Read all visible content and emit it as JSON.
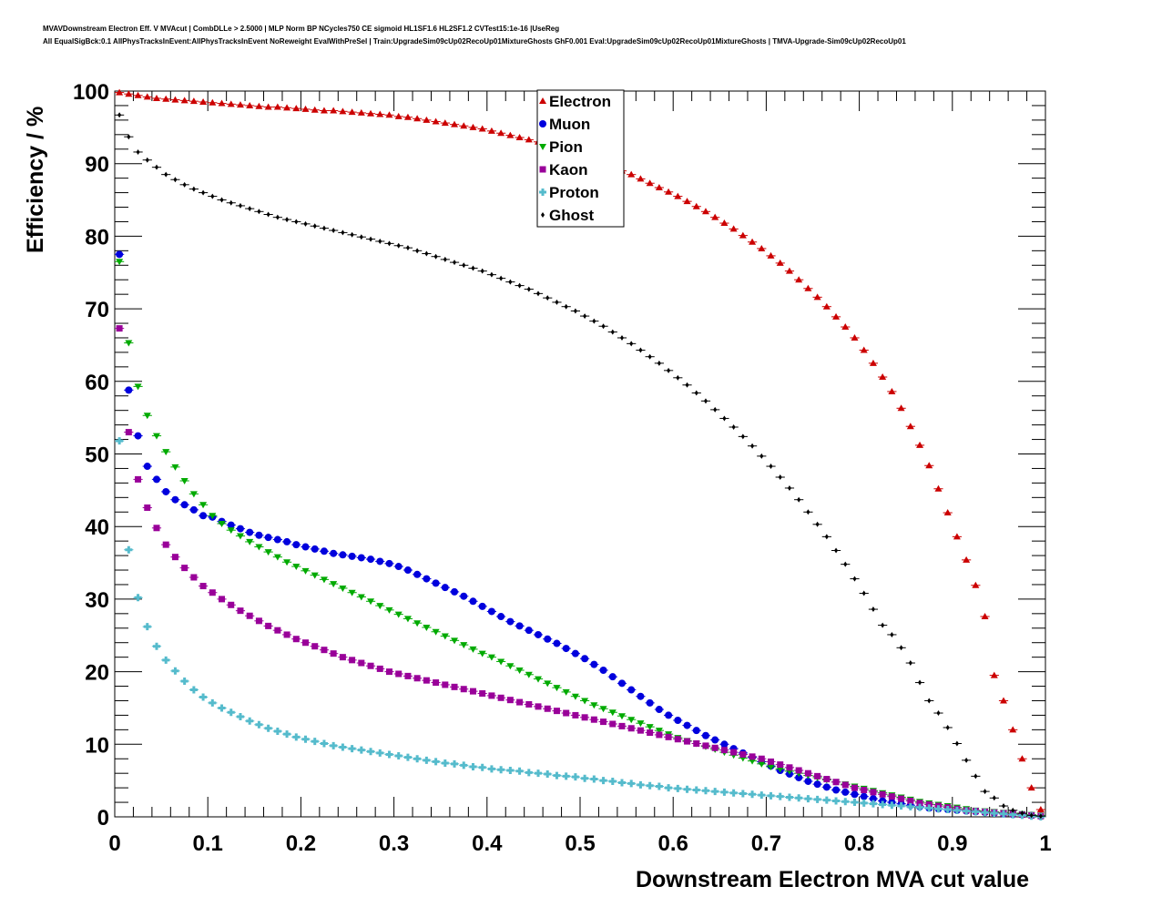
{
  "header": {
    "line1": "MVAVDownstream Electron Eff. V MVAcut | CombDLLe > 2.5000 | MLP Norm BP NCycles750 CE sigmoid HL1SF1.6 HL2SF1.2 CVTest15:1e-16 |UseReg",
    "line2": "All EqualSigBck:0.1 AllPhysTracksInEvent:AllPhysTracksInEvent NoReweight EvalWithPreSel | Train:UpgradeSim09cUp02RecoUp01MixtureGhosts GhF0.001 Eval:UpgradeSim09cUp02RecoUp01MixtureGhosts | TMVA-Upgrade-Sim09cUp02RecoUp01"
  },
  "chart_data": {
    "type": "scatter",
    "xlabel": "Downstream Electron MVA cut value",
    "ylabel": "Efficiency / %",
    "xlim": [
      0,
      1
    ],
    "ylim": [
      0,
      100
    ],
    "x_ticks": [
      "0",
      "0.1",
      "0.2",
      "0.3",
      "0.4",
      "0.5",
      "0.6",
      "0.7",
      "0.8",
      "0.9",
      "1"
    ],
    "y_ticks": [
      "0",
      "10",
      "20",
      "30",
      "40",
      "50",
      "60",
      "70",
      "80",
      "90",
      "100"
    ],
    "legend_position": "top-center",
    "grid": false,
    "x": [
      0.005,
      0.015,
      0.025,
      0.035,
      0.045,
      0.055,
      0.065,
      0.075,
      0.085,
      0.095,
      0.105,
      0.115,
      0.125,
      0.135,
      0.145,
      0.155,
      0.165,
      0.175,
      0.185,
      0.195,
      0.205,
      0.215,
      0.225,
      0.235,
      0.245,
      0.255,
      0.265,
      0.275,
      0.285,
      0.295,
      0.305,
      0.315,
      0.325,
      0.335,
      0.345,
      0.355,
      0.365,
      0.375,
      0.385,
      0.395,
      0.405,
      0.415,
      0.425,
      0.435,
      0.445,
      0.455,
      0.465,
      0.475,
      0.485,
      0.495,
      0.505,
      0.515,
      0.525,
      0.535,
      0.545,
      0.555,
      0.565,
      0.575,
      0.585,
      0.595,
      0.605,
      0.615,
      0.625,
      0.635,
      0.645,
      0.655,
      0.665,
      0.675,
      0.685,
      0.695,
      0.705,
      0.715,
      0.725,
      0.735,
      0.745,
      0.755,
      0.765,
      0.775,
      0.785,
      0.795,
      0.805,
      0.815,
      0.825,
      0.835,
      0.845,
      0.855,
      0.865,
      0.875,
      0.885,
      0.895,
      0.905,
      0.915,
      0.925,
      0.935,
      0.945,
      0.955,
      0.965,
      0.975,
      0.985,
      0.995
    ],
    "series": [
      {
        "name": "Electron",
        "color": "#cc0000",
        "marker": "triangle-up",
        "values": [
          99.8,
          99.6,
          99.4,
          99.2,
          99.0,
          98.9,
          98.8,
          98.7,
          98.6,
          98.5,
          98.4,
          98.3,
          98.2,
          98.1,
          98.0,
          97.9,
          97.8,
          97.8,
          97.7,
          97.6,
          97.5,
          97.4,
          97.3,
          97.3,
          97.2,
          97.1,
          97.0,
          96.9,
          96.8,
          96.7,
          96.5,
          96.4,
          96.2,
          96.0,
          95.8,
          95.6,
          95.4,
          95.2,
          95.0,
          94.8,
          94.5,
          94.2,
          93.9,
          93.6,
          93.3,
          93.0,
          92.6,
          92.2,
          91.8,
          91.4,
          91.0,
          90.5,
          90.0,
          89.5,
          89.0,
          88.5,
          87.9,
          87.3,
          86.7,
          86.1,
          85.5,
          84.8,
          84.1,
          83.4,
          82.6,
          81.8,
          81.0,
          80.1,
          79.2,
          78.3,
          77.3,
          76.3,
          75.2,
          74.0,
          72.8,
          71.6,
          70.3,
          68.9,
          67.5,
          66.0,
          64.3,
          62.5,
          60.6,
          58.6,
          56.3,
          53.8,
          51.2,
          48.4,
          45.2,
          41.9,
          38.6,
          35.4,
          31.9,
          27.6,
          19.5,
          16.0,
          12.0,
          8.0,
          4.0,
          1.0
        ]
      },
      {
        "name": "Muon",
        "color": "#0000dd",
        "marker": "circle",
        "values": [
          77.5,
          58.8,
          52.5,
          48.3,
          46.5,
          44.8,
          43.7,
          43.0,
          42.3,
          41.5,
          41.3,
          40.7,
          40.2,
          39.7,
          39.2,
          38.8,
          38.5,
          38.2,
          37.9,
          37.5,
          37.2,
          36.9,
          36.6,
          36.3,
          36.1,
          35.9,
          35.7,
          35.5,
          35.2,
          34.9,
          34.5,
          34.0,
          33.4,
          32.8,
          32.2,
          31.6,
          31.0,
          30.4,
          29.7,
          29.0,
          28.3,
          27.6,
          26.9,
          26.3,
          25.7,
          25.1,
          24.5,
          23.9,
          23.2,
          22.5,
          21.8,
          21.0,
          20.2,
          19.3,
          18.4,
          17.5,
          16.6,
          15.7,
          14.8,
          14.0,
          13.3,
          12.6,
          11.9,
          11.2,
          10.6,
          10.0,
          9.4,
          8.8,
          8.2,
          7.6,
          7.0,
          6.4,
          5.9,
          5.4,
          4.9,
          4.5,
          4.1,
          3.7,
          3.4,
          3.1,
          2.8,
          2.5,
          2.2,
          2.0,
          1.8,
          1.6,
          1.4,
          1.2,
          1.1,
          1.0,
          0.9,
          0.8,
          0.7,
          0.6,
          0.5,
          0.4,
          0.3,
          0.3,
          0.2,
          0.1
        ]
      },
      {
        "name": "Pion",
        "color": "#00aa00",
        "marker": "triangle-down",
        "values": [
          76.5,
          65.3,
          59.3,
          55.3,
          52.5,
          50.3,
          48.2,
          46.3,
          44.5,
          43.0,
          41.5,
          40.4,
          39.5,
          38.7,
          37.9,
          37.2,
          36.5,
          35.8,
          35.1,
          34.5,
          33.9,
          33.3,
          32.7,
          32.1,
          31.5,
          30.9,
          30.3,
          29.7,
          29.1,
          28.5,
          27.9,
          27.3,
          26.7,
          26.1,
          25.5,
          24.9,
          24.3,
          23.7,
          23.1,
          22.5,
          22.0,
          21.4,
          20.8,
          20.2,
          19.6,
          19.0,
          18.4,
          17.8,
          17.2,
          16.6,
          16.0,
          15.4,
          14.9,
          14.4,
          13.9,
          13.4,
          12.9,
          12.4,
          11.9,
          11.4,
          10.9,
          10.5,
          10.1,
          9.7,
          9.3,
          8.9,
          8.5,
          8.1,
          7.7,
          7.3,
          6.9,
          6.6,
          6.3,
          6.0,
          5.7,
          5.4,
          5.1,
          4.8,
          4.5,
          4.2,
          3.9,
          3.6,
          3.3,
          3.0,
          2.7,
          2.4,
          2.1,
          1.9,
          1.7,
          1.5,
          1.3,
          1.1,
          0.9,
          0.8,
          0.7,
          0.6,
          0.5,
          0.4,
          0.3,
          0.2
        ]
      },
      {
        "name": "Kaon",
        "color": "#990099",
        "marker": "square",
        "values": [
          67.3,
          53.0,
          46.5,
          42.6,
          39.8,
          37.5,
          35.8,
          34.3,
          33.0,
          31.8,
          30.9,
          30.0,
          29.2,
          28.4,
          27.7,
          27.0,
          26.3,
          25.7,
          25.1,
          24.5,
          24.0,
          23.5,
          23.0,
          22.5,
          22.0,
          21.6,
          21.2,
          20.8,
          20.4,
          20.0,
          19.7,
          19.4,
          19.1,
          18.8,
          18.5,
          18.2,
          17.9,
          17.6,
          17.3,
          17.0,
          16.7,
          16.4,
          16.1,
          15.8,
          15.5,
          15.2,
          14.9,
          14.6,
          14.3,
          14.0,
          13.7,
          13.4,
          13.1,
          12.8,
          12.5,
          12.2,
          11.9,
          11.6,
          11.3,
          11.0,
          10.7,
          10.4,
          10.1,
          9.8,
          9.5,
          9.2,
          8.9,
          8.6,
          8.3,
          8.0,
          7.6,
          7.2,
          6.8,
          6.4,
          6.0,
          5.6,
          5.2,
          4.8,
          4.4,
          4.0,
          3.7,
          3.4,
          3.1,
          2.8,
          2.5,
          2.2,
          1.9,
          1.7,
          1.5,
          1.3,
          1.1,
          0.9,
          0.8,
          0.7,
          0.6,
          0.5,
          0.4,
          0.3,
          0.2,
          0.1
        ]
      },
      {
        "name": "Proton",
        "color": "#55bbcc",
        "marker": "cross",
        "values": [
          51.8,
          36.8,
          30.2,
          26.2,
          23.5,
          21.6,
          20.1,
          18.7,
          17.5,
          16.5,
          15.7,
          15.0,
          14.4,
          13.8,
          13.2,
          12.7,
          12.2,
          11.8,
          11.4,
          11.0,
          10.7,
          10.4,
          10.1,
          9.8,
          9.6,
          9.4,
          9.2,
          9.0,
          8.8,
          8.6,
          8.4,
          8.2,
          8.0,
          7.8,
          7.6,
          7.4,
          7.3,
          7.1,
          6.9,
          6.8,
          6.6,
          6.5,
          6.4,
          6.3,
          6.1,
          6.0,
          5.9,
          5.7,
          5.6,
          5.5,
          5.3,
          5.2,
          5.0,
          4.9,
          4.7,
          4.6,
          4.4,
          4.3,
          4.2,
          4.0,
          3.9,
          3.8,
          3.7,
          3.6,
          3.5,
          3.4,
          3.3,
          3.2,
          3.1,
          3.0,
          2.9,
          2.8,
          2.7,
          2.6,
          2.5,
          2.4,
          2.3,
          2.2,
          2.1,
          2.0,
          1.9,
          1.8,
          1.7,
          1.6,
          1.5,
          1.4,
          1.3,
          1.2,
          1.1,
          1.0,
          0.9,
          0.8,
          0.7,
          0.6,
          0.5,
          0.4,
          0.3,
          0.2,
          0.1,
          0.0
        ]
      },
      {
        "name": "Ghost",
        "color": "#000000",
        "marker": "diamond",
        "values": [
          96.7,
          93.7,
          91.6,
          90.5,
          89.5,
          88.5,
          87.8,
          87.1,
          86.5,
          86.0,
          85.5,
          85.0,
          84.6,
          84.2,
          83.8,
          83.4,
          83.0,
          82.6,
          82.3,
          82.0,
          81.7,
          81.4,
          81.1,
          80.8,
          80.5,
          80.2,
          79.9,
          79.6,
          79.3,
          79.0,
          78.7,
          78.4,
          78.0,
          77.6,
          77.2,
          76.8,
          76.4,
          76.0,
          75.6,
          75.2,
          74.7,
          74.2,
          73.7,
          73.2,
          72.7,
          72.1,
          71.5,
          70.9,
          70.3,
          69.7,
          69.0,
          68.3,
          67.6,
          66.8,
          66.0,
          65.2,
          64.3,
          63.4,
          62.5,
          61.5,
          60.5,
          59.5,
          58.4,
          57.3,
          56.1,
          54.9,
          53.7,
          52.4,
          51.1,
          49.7,
          48.3,
          46.8,
          45.3,
          43.7,
          42.0,
          40.3,
          38.6,
          36.7,
          34.8,
          32.8,
          30.8,
          28.6,
          26.4,
          25.1,
          23.3,
          21.2,
          18.5,
          16.0,
          14.3,
          12.3,
          10.1,
          7.8,
          5.6,
          3.5,
          2.6,
          1.5,
          0.9,
          0.5,
          0.2,
          0.1
        ]
      }
    ]
  }
}
